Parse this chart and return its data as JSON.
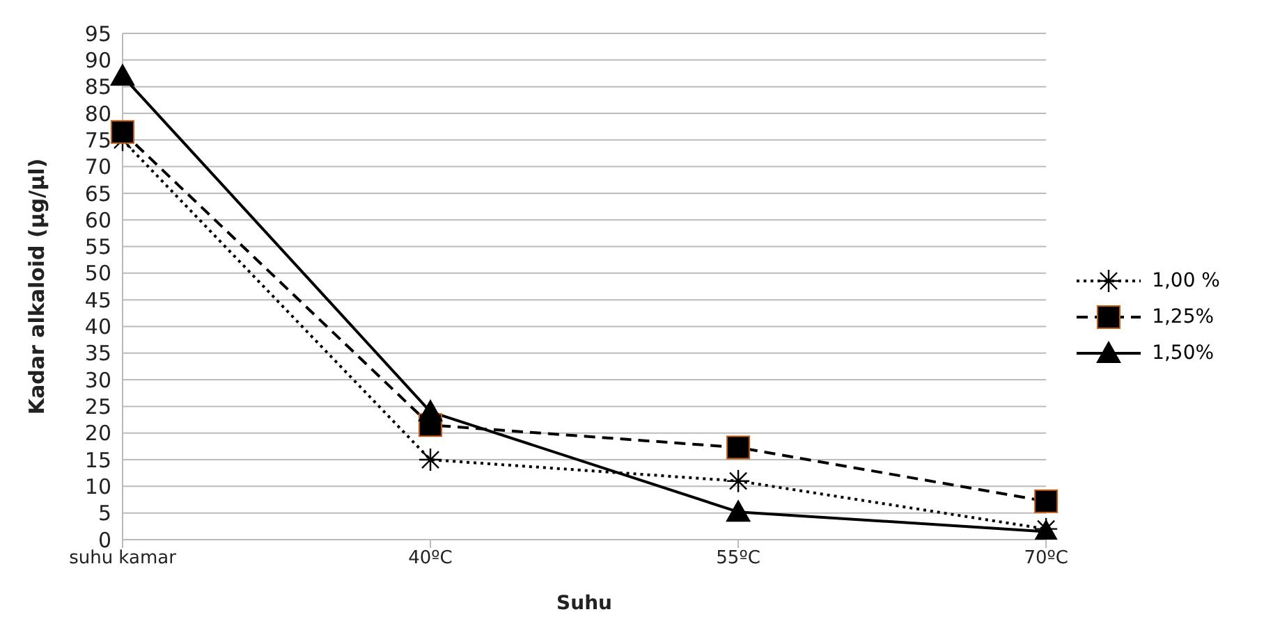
{
  "chart_data": {
    "type": "line",
    "xlabel": "Suhu",
    "ylabel": "Kadar alkaloid (µg/µl)",
    "categories": [
      "suhu kamar",
      "40ºC",
      "55ºC",
      "70ºC"
    ],
    "series": [
      {
        "name": "1,00 %",
        "color": "#000000",
        "values": [
          75,
          15,
          11,
          2
        ],
        "marker": "cross",
        "line_style": "dotted"
      },
      {
        "name": "1,25%",
        "color": "#000000",
        "values": [
          76.5,
          21.5,
          17.3,
          7.2
        ],
        "marker": "square",
        "line_style": "dashed"
      },
      {
        "name": "1,50%",
        "color": "#000000",
        "values": [
          87,
          24,
          5.2,
          1.5
        ],
        "marker": "triangle",
        "line_style": "solid"
      }
    ],
    "ylim": [
      0,
      95
    ],
    "yticks": [
      0,
      5,
      10,
      15,
      20,
      25,
      30,
      35,
      40,
      45,
      50,
      55,
      60,
      65,
      70,
      75,
      80,
      85,
      90,
      95
    ],
    "grid": "y",
    "legend": "right"
  }
}
